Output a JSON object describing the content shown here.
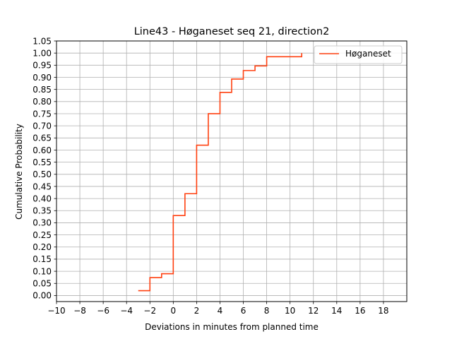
{
  "chart_data": {
    "type": "line",
    "step": "post",
    "title": "Line43 - Høganeset seq 21, direction2",
    "xlabel": "Deviations in minutes from planned time",
    "ylabel": "Cumulative Probability",
    "xlim": [
      -10,
      20
    ],
    "ylim": [
      -0.025,
      1.05
    ],
    "xticks": [
      -10,
      -8,
      -6,
      -4,
      -2,
      0,
      2,
      4,
      6,
      8,
      10,
      12,
      14,
      16,
      18
    ],
    "xtick_labels": [
      "−10",
      "−8",
      "−6",
      "−4",
      "−2",
      "0",
      "2",
      "4",
      "6",
      "8",
      "10",
      "12",
      "14",
      "16",
      "18"
    ],
    "yticks": [
      0.0,
      0.05,
      0.1,
      0.15,
      0.2,
      0.25,
      0.3,
      0.35,
      0.4,
      0.45,
      0.5,
      0.55,
      0.6,
      0.65,
      0.7,
      0.75,
      0.8,
      0.85,
      0.9,
      0.95,
      1.0,
      1.05
    ],
    "ytick_labels": [
      "0.00",
      "0.05",
      "0.10",
      "0.15",
      "0.20",
      "0.25",
      "0.30",
      "0.35",
      "0.40",
      "0.45",
      "0.50",
      "0.55",
      "0.60",
      "0.65",
      "0.70",
      "0.75",
      "0.80",
      "0.85",
      "0.90",
      "0.95",
      "1.00",
      "1.05"
    ],
    "grid": true,
    "legend_position": "top-right",
    "series": [
      {
        "name": "Høganeset",
        "color": "#ff4010",
        "x": [
          -3,
          -2,
          -1,
          0,
          1,
          2,
          3,
          4,
          5,
          6,
          7,
          8,
          11
        ],
        "y": [
          0.02,
          0.074,
          0.09,
          0.33,
          0.42,
          0.62,
          0.75,
          0.838,
          0.893,
          0.928,
          0.947,
          0.985,
          1.0
        ]
      }
    ]
  }
}
